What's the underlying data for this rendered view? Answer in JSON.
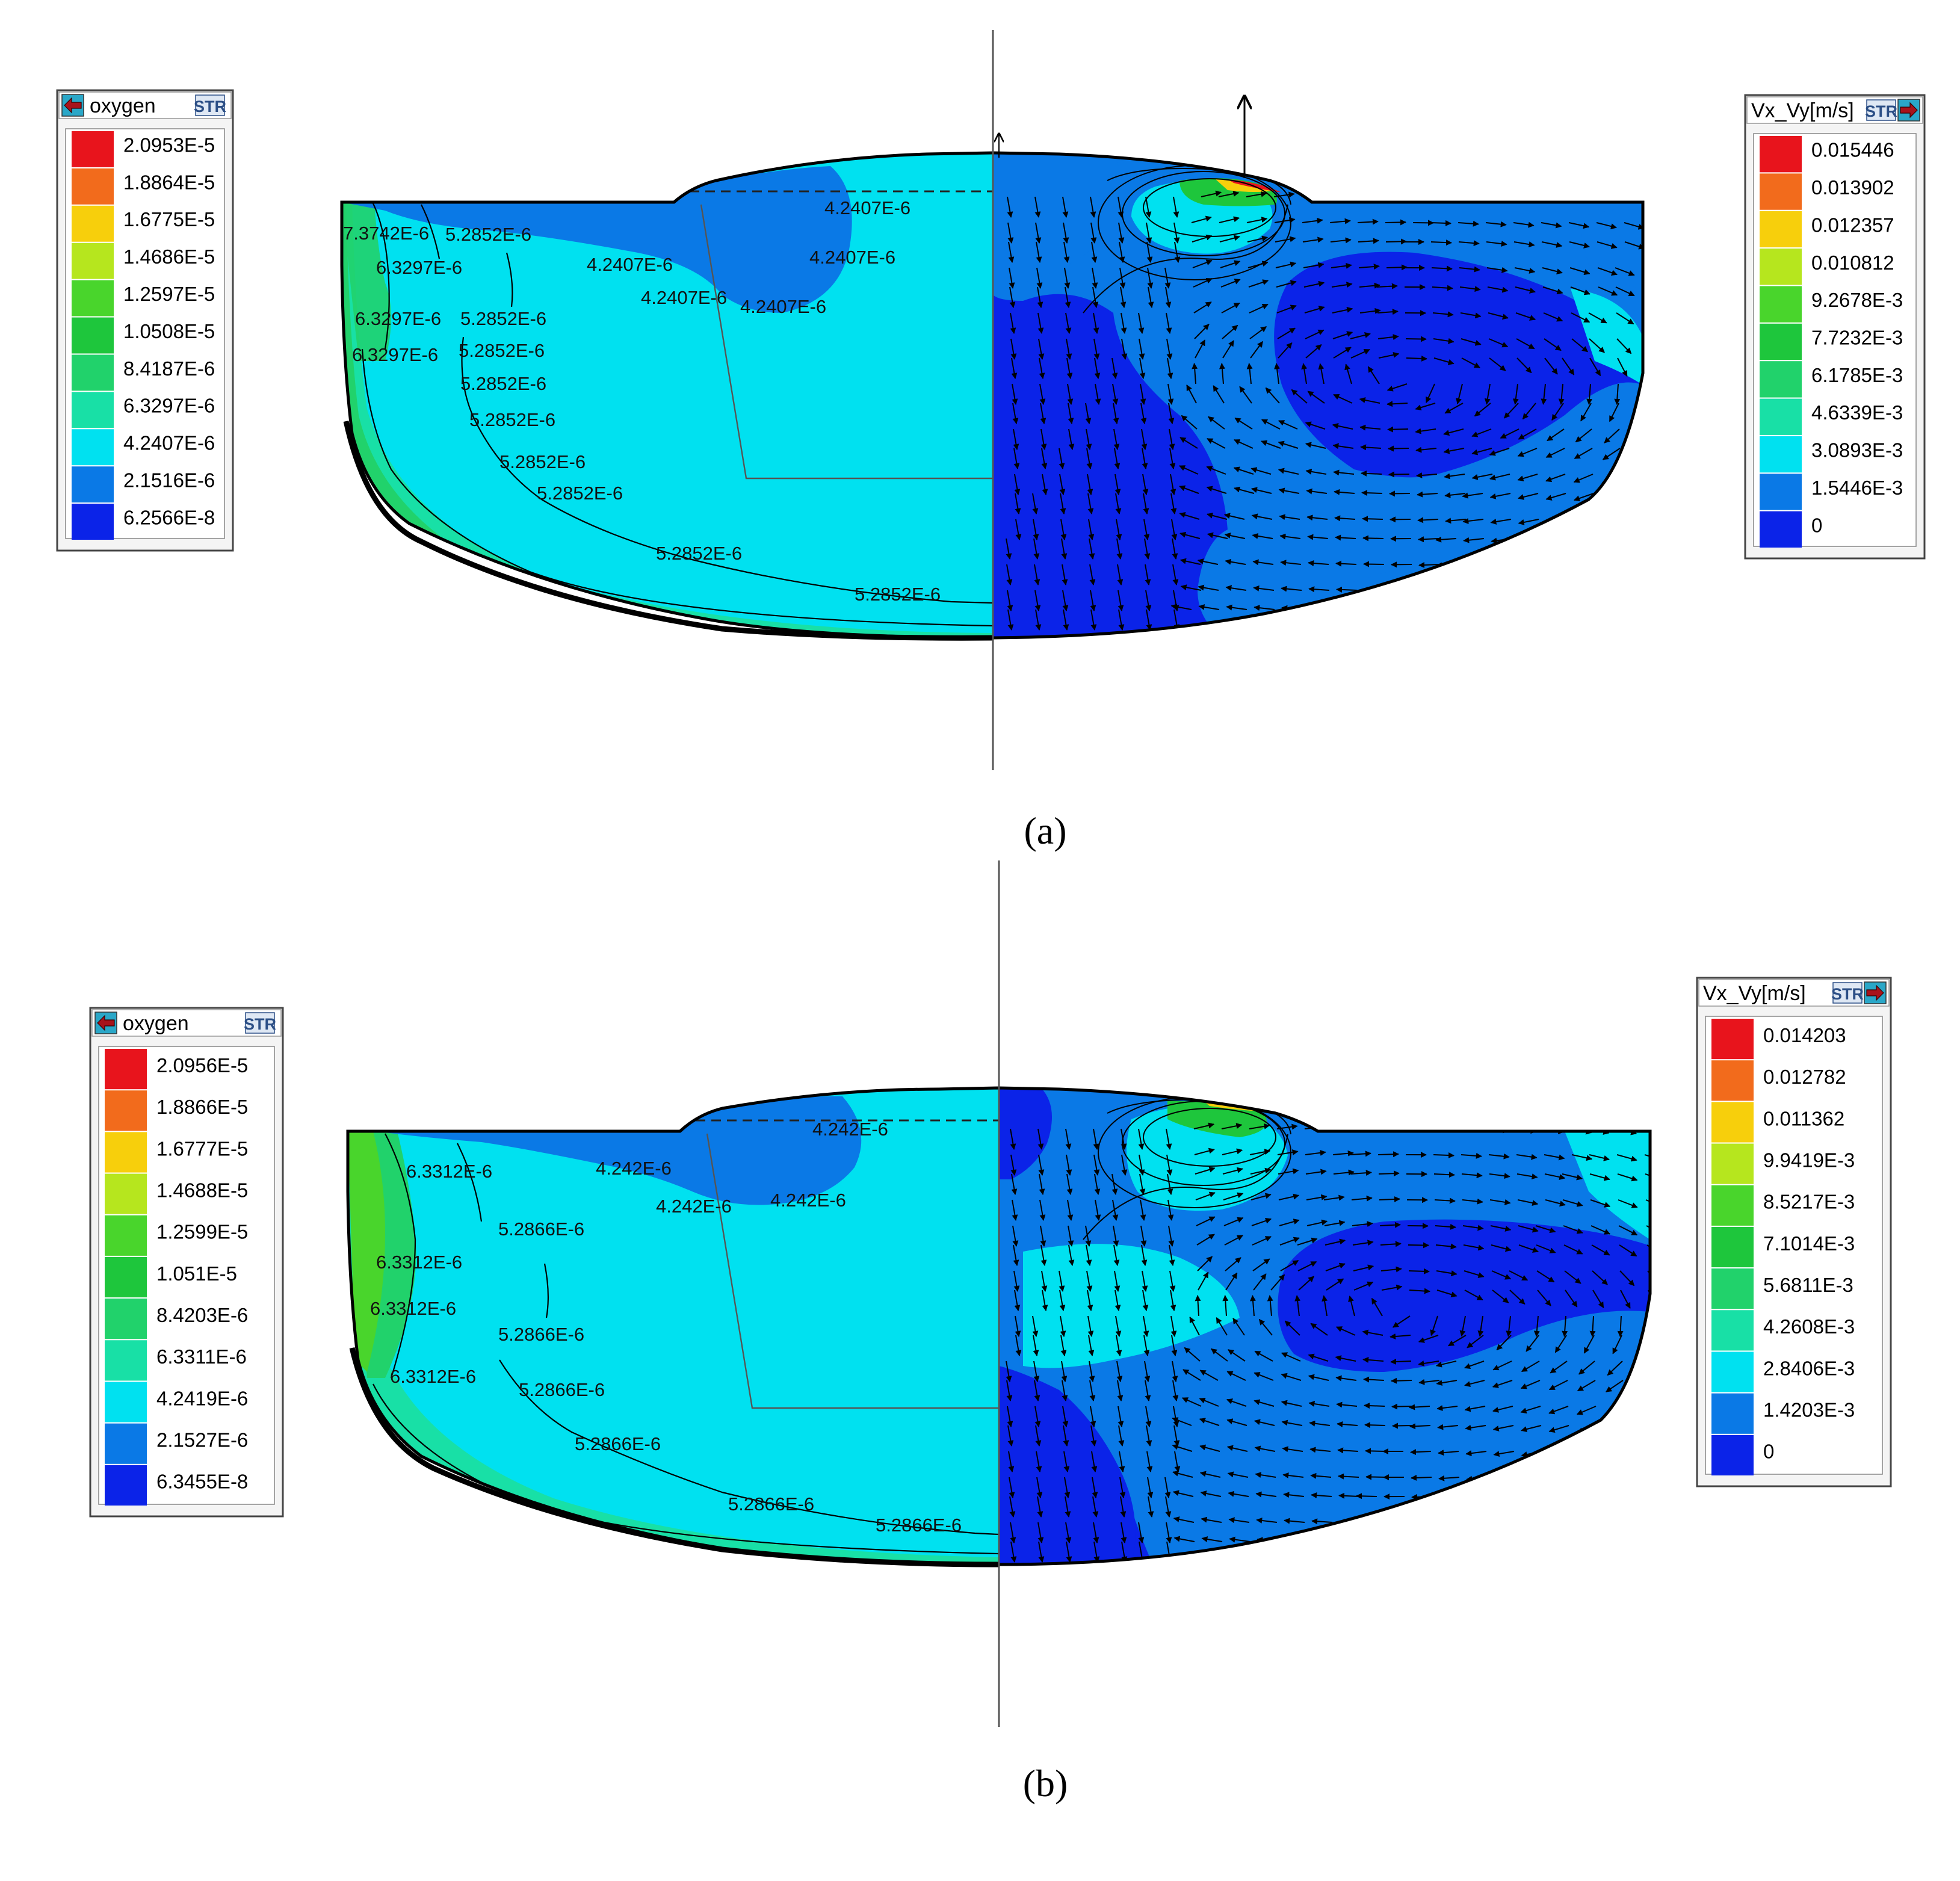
{
  "panels": [
    {
      "caption": "(a)",
      "oxygen_legend": {
        "title": "oxygen",
        "badge": "STR",
        "levels": [
          "2.0953E-5",
          "1.8864E-5",
          "1.6775E-5",
          "1.4686E-5",
          "1.2597E-5",
          "1.0508E-5",
          "8.4187E-6",
          "6.3297E-6",
          "4.2407E-6",
          "2.1516E-6",
          "6.2566E-8"
        ]
      },
      "velocity_legend": {
        "title": "Vx_Vy[m/s]",
        "badge": "STR",
        "levels": [
          "0.015446",
          "0.013902",
          "0.012357",
          "0.010812",
          "9.2678E-3",
          "7.7232E-3",
          "6.1785E-3",
          "4.6339E-3",
          "3.0893E-3",
          "1.5446E-3",
          "0"
        ]
      },
      "contour_labels": [
        "4.2407E-6",
        "4.2407E-6",
        "4.2407E-6",
        "4.2407E-6",
        "4.2407E-6",
        "7.3742E-6",
        "5.2852E-6",
        "6.3297E-6",
        "6.3297E-6",
        "5.2852E-6",
        "6.3297E-6",
        "5.2852E-6",
        "5.2852E-6",
        "5.2852E-6",
        "5.2852E-6",
        "5.2852E-6",
        "5.2852E-6",
        "5.2852E-6"
      ]
    },
    {
      "caption": "(b)",
      "oxygen_legend": {
        "title": "oxygen",
        "badge": "STR",
        "levels": [
          "2.0956E-5",
          "1.8866E-5",
          "1.6777E-5",
          "1.4688E-5",
          "1.2599E-5",
          "1.051E-5",
          "8.4203E-6",
          "6.3311E-6",
          "4.2419E-6",
          "2.1527E-6",
          "6.3455E-8"
        ]
      },
      "velocity_legend": {
        "title": "Vx_Vy[m/s]",
        "badge": "STR",
        "levels": [
          "0.014203",
          "0.012782",
          "0.011362",
          "9.9419E-3",
          "8.5217E-3",
          "7.1014E-3",
          "5.6811E-3",
          "4.2608E-3",
          "2.8406E-3",
          "1.4203E-3",
          "0"
        ]
      },
      "contour_labels": [
        "4.242E-6",
        "4.242E-6",
        "4.242E-6",
        "4.242E-6",
        "6.3312E-6",
        "5.2866E-6",
        "6.3312E-6",
        "6.3312E-6",
        "5.2866E-6",
        "6.3312E-6",
        "5.2866E-6",
        "5.2866E-6",
        "5.2866E-6",
        "5.2866E-6"
      ]
    }
  ],
  "colors": {
    "scale": [
      "#e8141c",
      "#f26b1c",
      "#f7cf0c",
      "#b6e61e",
      "#49d52c",
      "#1ec63c",
      "#21d26b",
      "#18e0a6",
      "#00e1f0",
      "#0a79e6",
      "#0b23e8"
    ],
    "oxygen_field": "#00e1f0",
    "low_oxygen_pocket": "#0a79e6",
    "velocity_field": "#0b23e8"
  }
}
